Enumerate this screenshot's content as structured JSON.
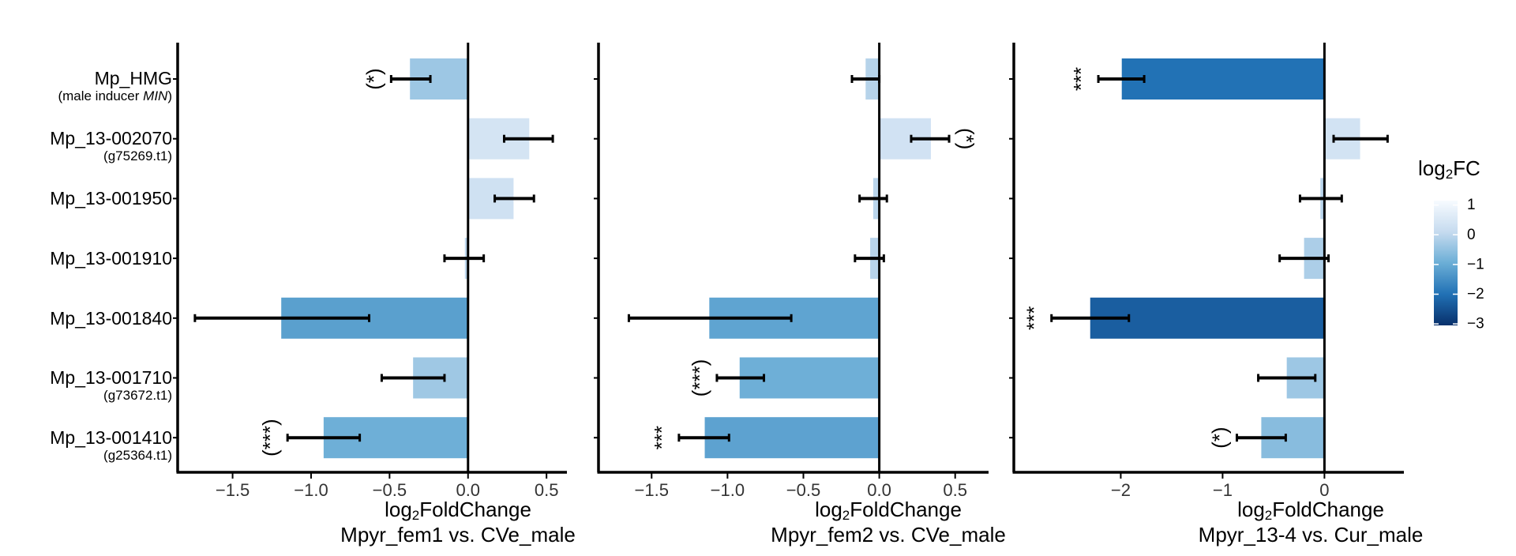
{
  "chart_data": [
    {
      "type": "bar",
      "orientation": "horizontal",
      "categories": [
        "Mp_HMG",
        "Mp_13-002070",
        "Mp_13-001950",
        "Mp_13-001910",
        "Mp_13-001840",
        "Mp_13-001710",
        "Mp_13-001410"
      ],
      "category_sublabels": [
        "(male inducer MIN)",
        "(g75269.t1)",
        "",
        "",
        "",
        "(g73672.t1)",
        "(g25364.t1)"
      ],
      "values": [
        -0.37,
        0.39,
        0.29,
        -0.02,
        -1.19,
        -0.35,
        -0.92
      ],
      "error_low": [
        -0.49,
        0.23,
        0.17,
        -0.15,
        -1.74,
        -0.55,
        -1.15
      ],
      "error_high": [
        -0.24,
        0.54,
        0.42,
        0.1,
        -0.63,
        -0.15,
        -0.69
      ],
      "significance": [
        "(*)",
        "",
        "",
        "",
        "",
        "",
        "(***)"
      ],
      "xlabel_var": "log",
      "xlabel_sub": "2",
      "xlabel_rest": "FoldChange",
      "subtitle": "Mpyr_fem1 vs. CVe_male",
      "xlim": [
        -1.85,
        0.63
      ],
      "xticks": [
        -1.5,
        -1.0,
        -0.5,
        0.0,
        0.5
      ],
      "xtick_labels": [
        "−1.5",
        "−1.0",
        "−0.5",
        "0.0",
        "0.5"
      ],
      "grid": false
    },
    {
      "type": "bar",
      "orientation": "horizontal",
      "categories": [
        "Mp_HMG",
        "Mp_13-002070",
        "Mp_13-001950",
        "Mp_13-001910",
        "Mp_13-001840",
        "Mp_13-001710",
        "Mp_13-001410"
      ],
      "values": [
        -0.09,
        0.34,
        -0.04,
        -0.06,
        -1.12,
        -0.92,
        -1.15
      ],
      "error_low": [
        -0.18,
        0.21,
        -0.13,
        -0.16,
        -1.65,
        -1.07,
        -1.32
      ],
      "error_high": [
        0.0,
        0.46,
        0.05,
        0.03,
        -0.58,
        -0.76,
        -0.99
      ],
      "significance": [
        "",
        "(*)",
        "",
        "",
        "",
        "(***)",
        "***"
      ],
      "xlabel_var": "log",
      "xlabel_sub": "2",
      "xlabel_rest": "FoldChange",
      "subtitle": "Mpyr_fem2 vs. CVe_male",
      "xlim": [
        -1.85,
        0.72
      ],
      "xticks": [
        -1.5,
        -1.0,
        -0.5,
        0.0,
        0.5
      ],
      "xtick_labels": [
        "−1.5",
        "−1.0",
        "−0.5",
        "0.0",
        "0.5"
      ],
      "grid": false
    },
    {
      "type": "bar",
      "orientation": "horizontal",
      "categories": [
        "Mp_HMG",
        "Mp_13-002070",
        "Mp_13-001950",
        "Mp_13-001910",
        "Mp_13-001840",
        "Mp_13-001710",
        "Mp_13-001410"
      ],
      "values": [
        -1.99,
        0.35,
        -0.04,
        -0.2,
        -2.3,
        -0.37,
        -0.62
      ],
      "error_low": [
        -2.22,
        0.09,
        -0.24,
        -0.44,
        -2.68,
        -0.65,
        -0.86
      ],
      "error_high": [
        -1.77,
        0.62,
        0.17,
        0.04,
        -1.92,
        -0.09,
        -0.38
      ],
      "significance": [
        "***",
        "",
        "",
        "",
        "***",
        "",
        "(*)"
      ],
      "xlabel_var": "log",
      "xlabel_sub": "2",
      "xlabel_rest": "FoldChange",
      "subtitle": "Mpyr_13-4 vs. Cur_male",
      "xlim": [
        -3.05,
        0.78
      ],
      "xticks": [
        -2,
        -1,
        0
      ],
      "xtick_labels": [
        "−2",
        "−1",
        "0"
      ],
      "grid": false
    }
  ],
  "legend": {
    "title_var": "log",
    "title_sub": "2",
    "title_rest": "FC",
    "ticks": [
      1,
      0,
      -1,
      -2,
      -3
    ],
    "tick_labels": [
      "1",
      "0",
      "−1",
      "−2",
      "−3"
    ],
    "range": [
      1.15,
      -3.05
    ],
    "colors": [
      "#f7fbff",
      "#c6dbef",
      "#6baed6",
      "#2171b5",
      "#08306b"
    ],
    "placement": "right"
  }
}
